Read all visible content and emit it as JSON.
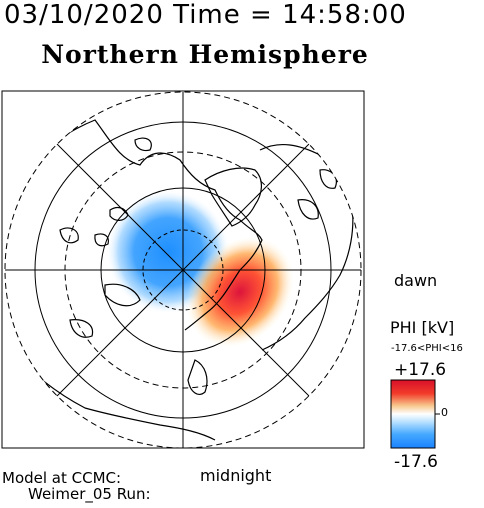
{
  "header": {
    "date_time": "03/10/2020 Time = 14:58:00",
    "hemisphere": "Northern Hemisphere"
  },
  "labels": {
    "dawn": "dawn",
    "midnight": "midnight",
    "model_line1": "Model at CCMC:",
    "model_line2": "Weimer_05 Run:"
  },
  "colorbar": {
    "title": "PHI [kV]",
    "range_text": "-17.6<PHI<16",
    "max_label": "+17.6",
    "zero_label": "0",
    "min_label": "-17.6",
    "colors": [
      "#1e90ff",
      "#87cefa",
      "#ffffff",
      "#f5deb3",
      "#ffa500",
      "#ff4500",
      "#dc143c"
    ]
  },
  "map_data": {
    "projection": "polar stereographic, north pole at center",
    "potential_pattern": "two-cell convection: negative (blue) cell on the dusk/pre-noon side, positive (red) cell on the dawn side"
  }
}
